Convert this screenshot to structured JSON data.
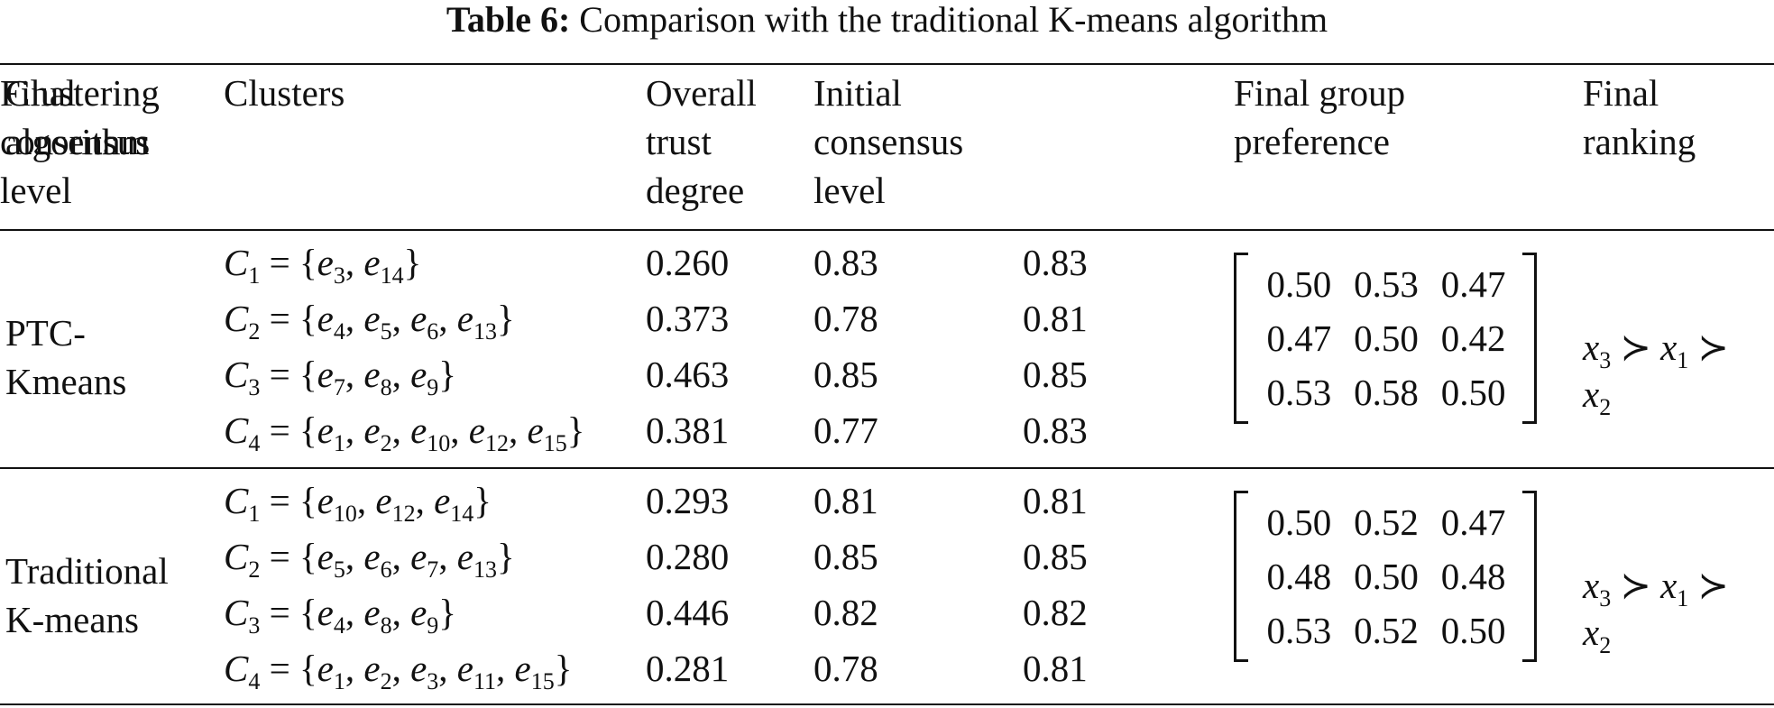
{
  "caption": {
    "label": "Table 6:",
    "text": "Comparison with the traditional K-means algorithm"
  },
  "headers": {
    "algorithm": [
      "Clustering",
      "algorithm"
    ],
    "clusters": [
      "Clusters"
    ],
    "trust": [
      "Overall",
      "trust",
      "degree"
    ],
    "initial": [
      "Initial",
      "consensus",
      "level"
    ],
    "final_consensus": [
      "Final",
      "consensus",
      "level"
    ],
    "preference": [
      "Final group",
      "preference"
    ],
    "ranking": [
      "Final",
      "ranking"
    ]
  },
  "groups": [
    {
      "algorithm": [
        "PTC-",
        "Kmeans"
      ],
      "rows": [
        {
          "cluster": "C",
          "sub": "1",
          "members": [
            [
              "e",
              "3"
            ],
            [
              "e",
              "14"
            ]
          ],
          "trust": "0.260",
          "initial": "0.83",
          "final": "0.83"
        },
        {
          "cluster": "C",
          "sub": "2",
          "members": [
            [
              "e",
              "4"
            ],
            [
              "e",
              "5"
            ],
            [
              "e",
              "6"
            ],
            [
              "e",
              "13"
            ]
          ],
          "trust": "0.373",
          "initial": "0.78",
          "final": "0.81"
        },
        {
          "cluster": "C",
          "sub": "3",
          "members": [
            [
              "e",
              "7"
            ],
            [
              "e",
              "8"
            ],
            [
              "e",
              "9"
            ]
          ],
          "trust": "0.463",
          "initial": "0.85",
          "final": "0.85"
        },
        {
          "cluster": "C",
          "sub": "4",
          "members": [
            [
              "e",
              "1"
            ],
            [
              "e",
              "2"
            ],
            [
              "e",
              "10"
            ],
            [
              "e",
              "12"
            ],
            [
              "e",
              "15"
            ]
          ],
          "trust": "0.381",
          "initial": "0.77",
          "final": "0.83"
        }
      ],
      "matrix": [
        [
          "0.50",
          "0.53",
          "0.47"
        ],
        [
          "0.47",
          "0.50",
          "0.42"
        ],
        [
          "0.53",
          "0.58",
          "0.50"
        ]
      ],
      "ranking": {
        "line1": [
          [
            "x",
            "3"
          ],
          [
            "x",
            "1"
          ]
        ],
        "line2": [
          "x",
          "2"
        ]
      }
    },
    {
      "algorithm": [
        "Traditional",
        "K-means"
      ],
      "rows": [
        {
          "cluster": "C",
          "sub": "1",
          "members": [
            [
              "e",
              "10"
            ],
            [
              "e",
              "12"
            ],
            [
              "e",
              "14"
            ]
          ],
          "trust": "0.293",
          "initial": "0.81",
          "final": "0.81"
        },
        {
          "cluster": "C",
          "sub": "2",
          "members": [
            [
              "e",
              "5"
            ],
            [
              "e",
              "6"
            ],
            [
              "e",
              "7"
            ],
            [
              "e",
              "13"
            ]
          ],
          "trust": "0.280",
          "initial": "0.85",
          "final": "0.85"
        },
        {
          "cluster": "C",
          "sub": "3",
          "members": [
            [
              "e",
              "4"
            ],
            [
              "e",
              "8"
            ],
            [
              "e",
              "9"
            ]
          ],
          "trust": "0.446",
          "initial": "0.82",
          "final": "0.82"
        },
        {
          "cluster": "C",
          "sub": "4",
          "members": [
            [
              "e",
              "1"
            ],
            [
              "e",
              "2"
            ],
            [
              "e",
              "3"
            ],
            [
              "e",
              "11"
            ],
            [
              "e",
              "15"
            ]
          ],
          "trust": "0.281",
          "initial": "0.78",
          "final": "0.81"
        }
      ],
      "matrix": [
        [
          "0.50",
          "0.52",
          "0.47"
        ],
        [
          "0.48",
          "0.50",
          "0.48"
        ],
        [
          "0.53",
          "0.52",
          "0.50"
        ]
      ],
      "ranking": {
        "line1": [
          [
            "x",
            "3"
          ],
          [
            "x",
            "1"
          ]
        ],
        "line2": [
          "x",
          "2"
        ]
      }
    }
  ]
}
